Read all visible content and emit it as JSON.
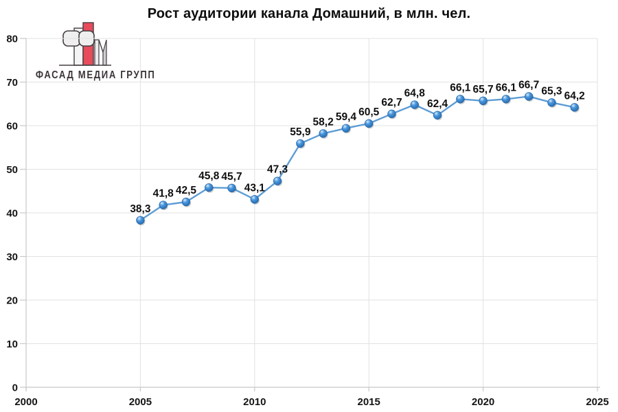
{
  "logo": {
    "text": "ФАСАД МЕДИА ГРУПП",
    "colors": {
      "red": "#e64c5c",
      "light": "#f4f4f4",
      "mid_gray": "#d2d2d2",
      "outline": "#433d41"
    }
  },
  "chart_data": {
    "type": "line",
    "title": "Рост аудитории канала Домашний, в млн. чел.",
    "x": [
      2005,
      2006,
      2007,
      2008,
      2009,
      2010,
      2011,
      2012,
      2013,
      2014,
      2015,
      2016,
      2017,
      2018,
      2019,
      2020,
      2021,
      2022,
      2023,
      2024
    ],
    "values": [
      38.3,
      41.8,
      42.5,
      45.8,
      45.7,
      43.1,
      47.3,
      55.9,
      58.2,
      59.4,
      60.5,
      62.7,
      64.8,
      62.4,
      66.1,
      65.7,
      66.1,
      66.7,
      65.3,
      64.2
    ],
    "point_labels": [
      "38,3",
      "41,8",
      "42,5",
      "45,8",
      "45,7",
      "43,1",
      "47,3",
      "55,9",
      "58,2",
      "59,4",
      "60,5",
      "62,7",
      "64,8",
      "62,4",
      "66,1",
      "65,7",
      "66,1",
      "66,7",
      "65,3",
      "64,2"
    ],
    "xlabel": "",
    "ylabel": "",
    "xlim": [
      2000,
      2025
    ],
    "ylim": [
      0,
      80
    ],
    "x_ticks": [
      2000,
      2005,
      2010,
      2015,
      2020,
      2025
    ],
    "y_ticks": [
      0,
      10,
      20,
      30,
      40,
      50,
      60,
      70,
      80
    ],
    "grid": true,
    "legend": "none",
    "data_label_position": "above",
    "colors": {
      "line": "#5e9cd3",
      "marker_highlight": "#d9ecfa",
      "marker_body": "#4b97dd",
      "marker_deep": "#2f77bd",
      "marker_rim": "#1f5f9f",
      "marker_stroke": "#2a6aa8",
      "grid": "#e2e2e2",
      "axis": "#c8c8c8",
      "tick_text": "#141414",
      "label_text": "#0f0f0f"
    }
  }
}
